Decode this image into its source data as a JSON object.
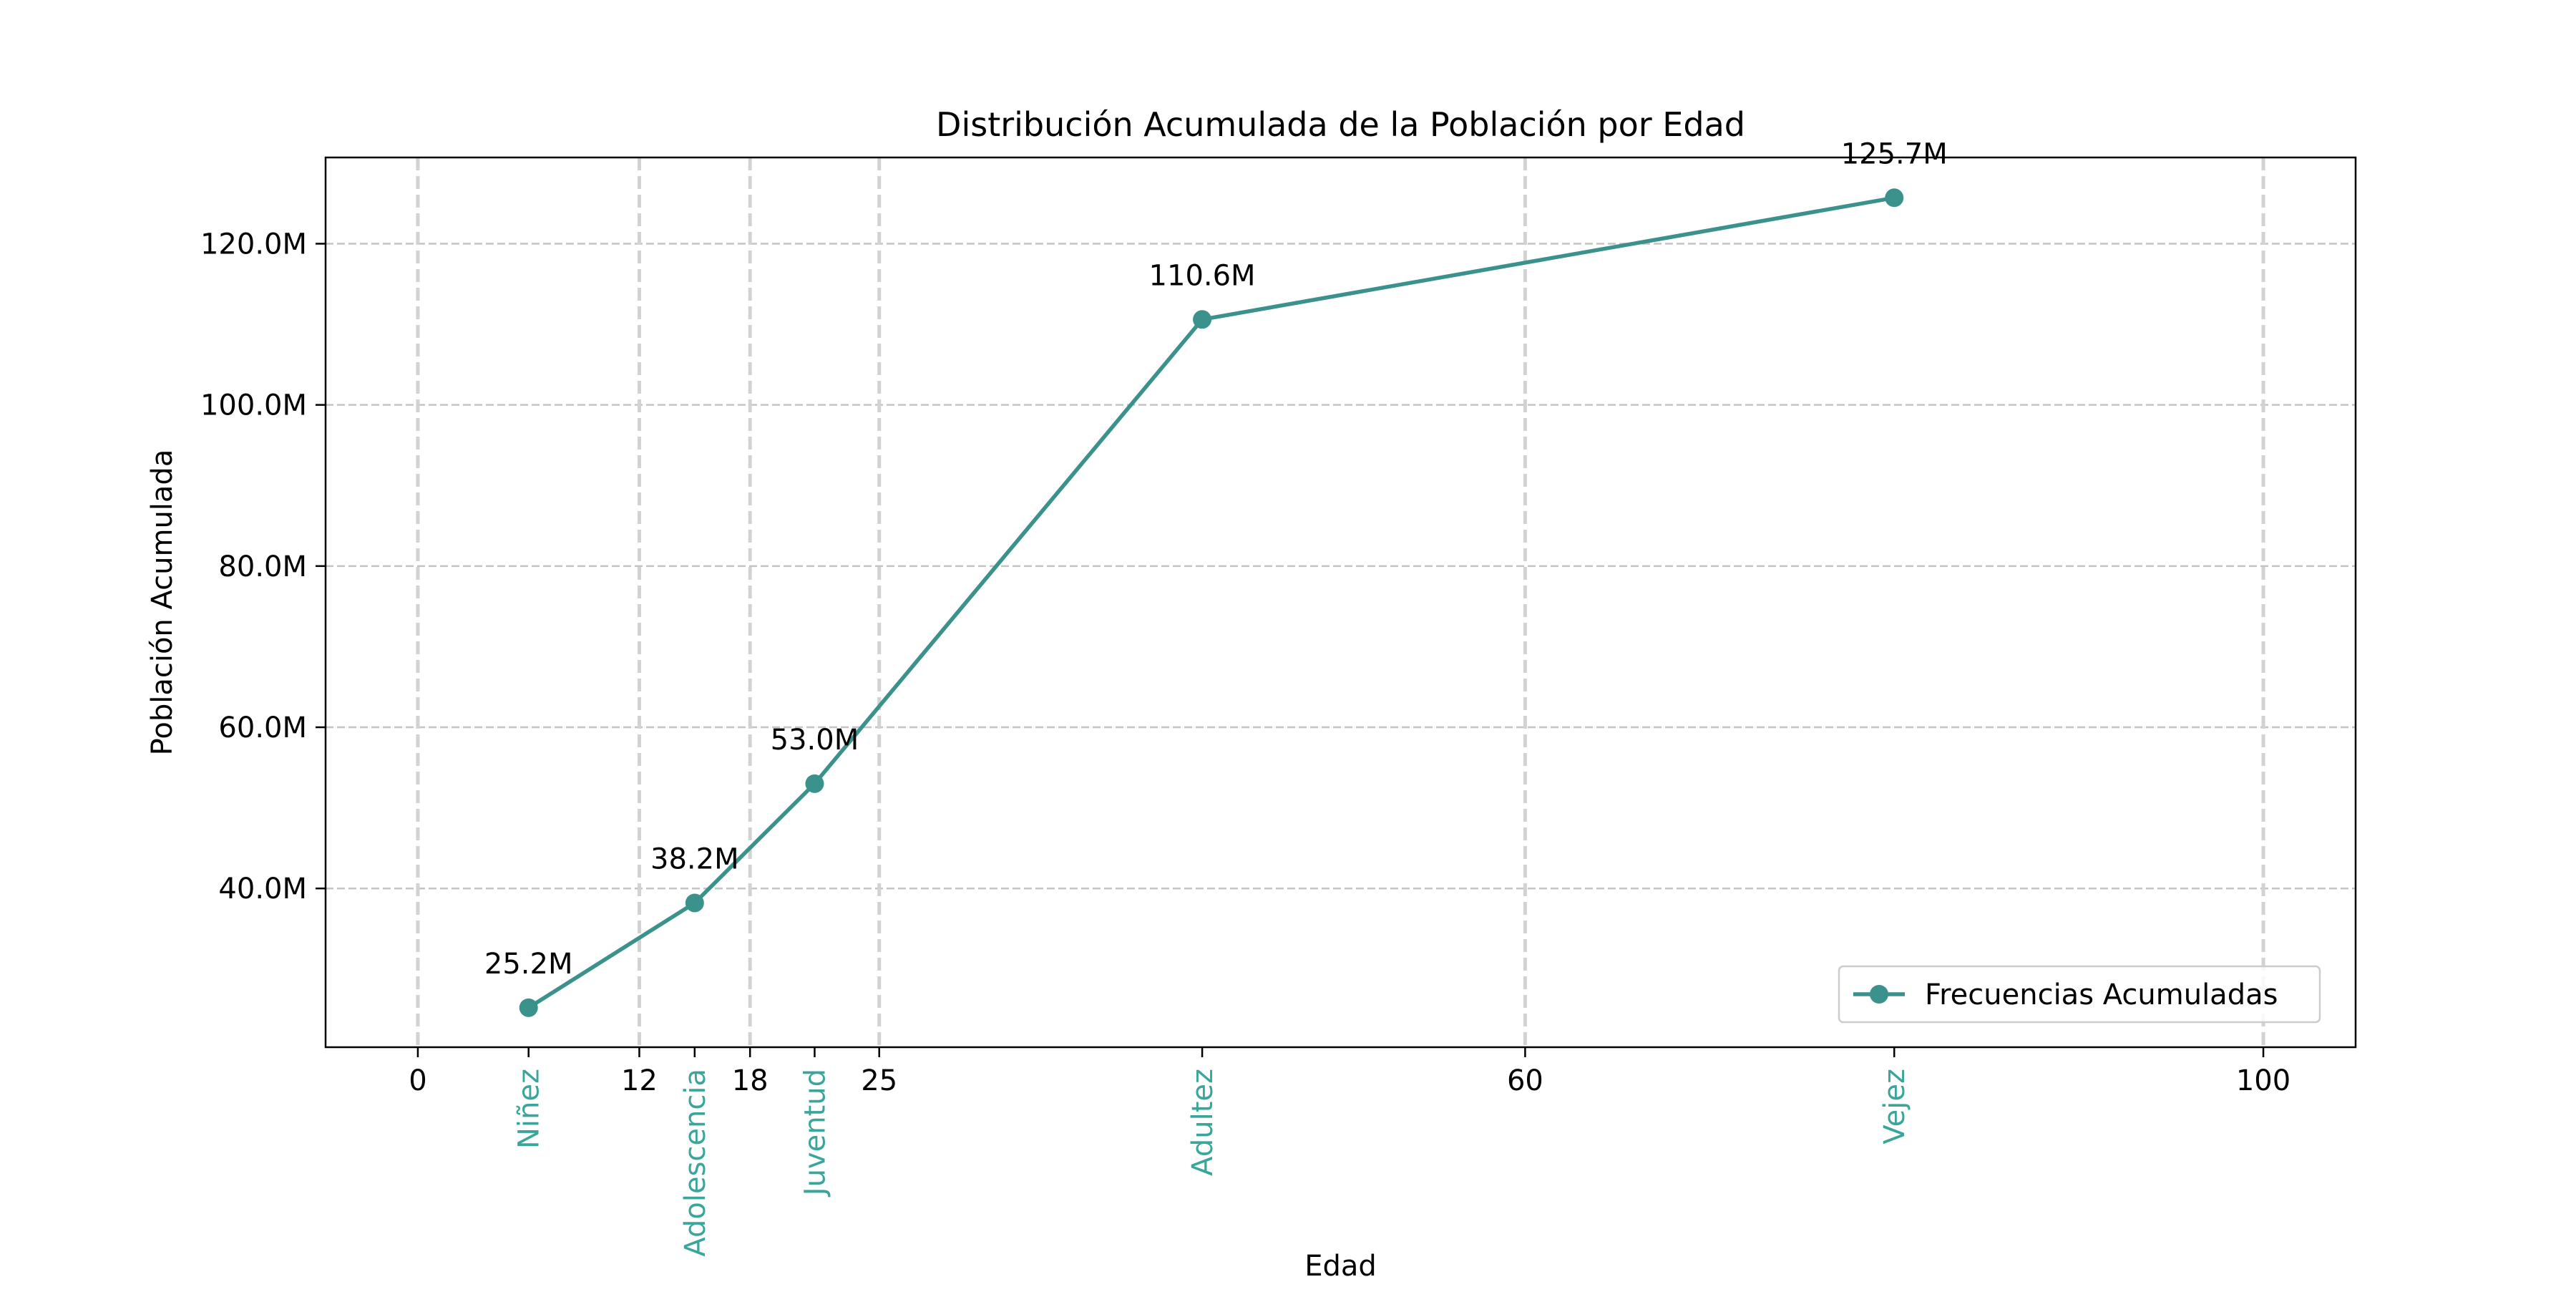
{
  "chart_data": {
    "type": "line",
    "title": "Distribución Acumulada de la Población por Edad",
    "xlabel": "Edad",
    "ylabel": "Población Acumulada",
    "xlim": [
      -5,
      105
    ],
    "ylim": [
      20.3,
      130.7
    ],
    "x_ticks": [
      {
        "value": 0,
        "label": "0"
      },
      {
        "value": 12,
        "label": "12"
      },
      {
        "value": 18,
        "label": "18"
      },
      {
        "value": 25,
        "label": "25"
      },
      {
        "value": 60,
        "label": "60"
      },
      {
        "value": 100,
        "label": "100"
      }
    ],
    "y_ticks": [
      {
        "value": 40,
        "label": "40.0M"
      },
      {
        "value": 60,
        "label": "60.0M"
      },
      {
        "value": 80,
        "label": "80.0M"
      },
      {
        "value": 100,
        "label": "100.0M"
      },
      {
        "value": 120,
        "label": "120.0M"
      }
    ],
    "vertical_lines": [
      0,
      12,
      18,
      25,
      60,
      100
    ],
    "grid": true,
    "legend_position": "lower-right",
    "series": [
      {
        "name": "Frecuencias Acumuladas",
        "color": "#3b918b",
        "points": [
          {
            "x": 6,
            "y": 25.2,
            "group": "Niñez",
            "label": "25.2M"
          },
          {
            "x": 15,
            "y": 38.2,
            "group": "Adolescencia",
            "label": "38.2M"
          },
          {
            "x": 21.5,
            "y": 53.0,
            "group": "Juventud",
            "label": "53.0M"
          },
          {
            "x": 42.5,
            "y": 110.6,
            "group": "Adultez",
            "label": "110.6M"
          },
          {
            "x": 80,
            "y": 125.7,
            "group": "Vejez",
            "label": "125.7M"
          }
        ]
      }
    ],
    "group_label_color": "#3aa59a"
  }
}
